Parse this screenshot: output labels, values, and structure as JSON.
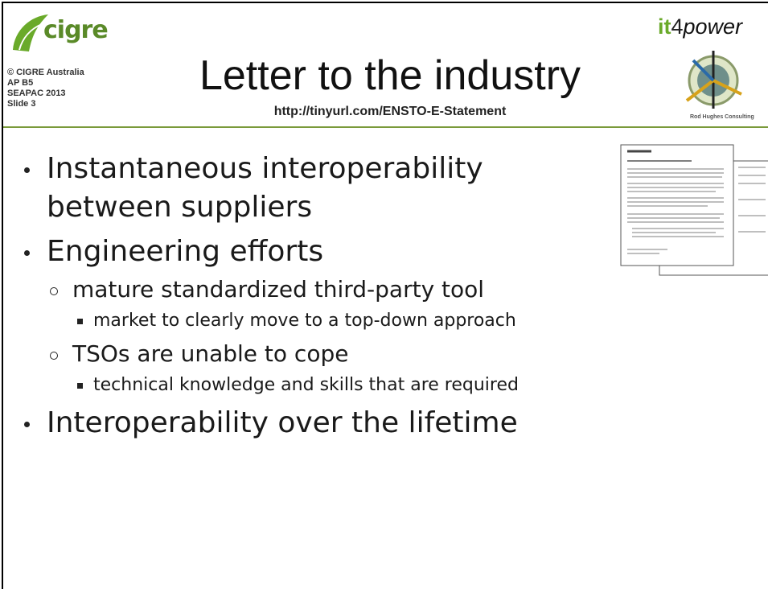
{
  "header": {
    "logo": {
      "name": "cigre",
      "lines": [
        "© CIGRE Australia",
        "AP B5",
        "SEAPAC 2013",
        "Slide 3"
      ]
    },
    "title": "Letter to the industry",
    "link": "http://tinyurl.com/ENSTO-E-Statement",
    "brand": {
      "parts": [
        "it",
        "4",
        "power"
      ],
      "caption": "Rod Hughes Consulting"
    }
  },
  "bullets": [
    {
      "text": "Instantaneous interoperability between suppliers"
    },
    {
      "text": "Engineering efforts",
      "sub": [
        {
          "text": "mature standardized third-party tool",
          "sub": [
            {
              "text": "market to clearly move to a top-down approach"
            }
          ]
        },
        {
          "text": "TSOs are unable to cope",
          "sub": [
            {
              "text": "technical knowledge and skills that are required"
            }
          ]
        }
      ]
    },
    {
      "text": "Interoperability over the lifetime"
    }
  ]
}
